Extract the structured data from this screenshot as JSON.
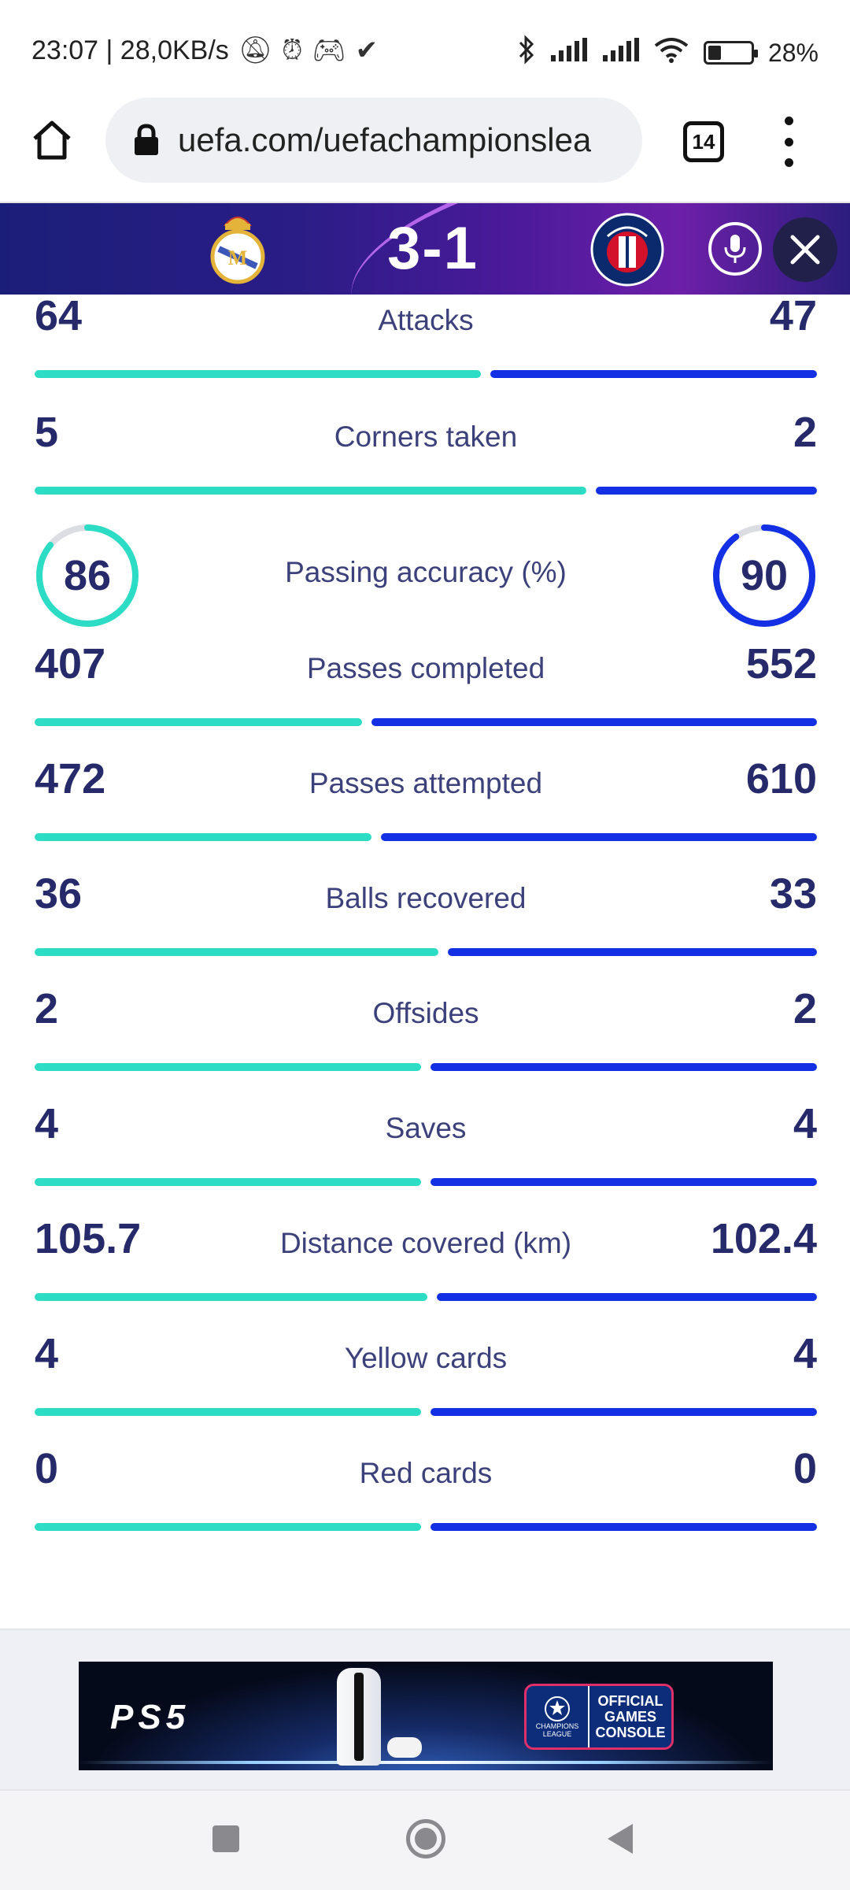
{
  "status_bar": {
    "left_text": "23:07 | 28,0KB/s",
    "battery_text": "28%",
    "battery_level": 0.28,
    "icons": [
      "muted-bell-icon",
      "alarm-icon",
      "game-controller-icon",
      "check-icon",
      "bluetooth-icon",
      "signal-icon",
      "signal-icon",
      "wifi-icon",
      "battery-icon"
    ]
  },
  "browser": {
    "url": "uefa.com/uefachampionslea",
    "tab_count": "14"
  },
  "match": {
    "score": "3-1",
    "home_crest": "real-madrid-crest",
    "away_crest": "psg-crest"
  },
  "stats": [
    {
      "label": "Attacks",
      "home": "64",
      "away": "47",
      "home_share": 0.577
    },
    {
      "label": "Corners taken",
      "home": "5",
      "away": "2",
      "home_share": 0.714
    },
    {
      "label": "Passes completed",
      "home": "407",
      "away": "552",
      "home_share": 0.424
    },
    {
      "label": "Passes attempted",
      "home": "472",
      "away": "610",
      "home_share": 0.436
    },
    {
      "label": "Balls recovered",
      "home": "36",
      "away": "33",
      "home_share": 0.522
    },
    {
      "label": "Offsides",
      "home": "2",
      "away": "2",
      "home_share": 0.5
    },
    {
      "label": "Saves",
      "home": "4",
      "away": "4",
      "home_share": 0.5
    },
    {
      "label": "Distance covered (km)",
      "home": "105.7",
      "away": "102.4",
      "home_share": 0.508
    },
    {
      "label": "Yellow cards",
      "home": "4",
      "away": "4",
      "home_share": 0.5
    },
    {
      "label": "Red cards",
      "home": "0",
      "away": "0",
      "home_share": 0.5
    }
  ],
  "passing_accuracy": {
    "label": "Passing accuracy (%)",
    "home": "86",
    "away": "90",
    "home_pct": 86,
    "away_pct": 90
  },
  "ad": {
    "ps5_logo": "PS5",
    "badge_text": "OFFICIAL GAMES CONSOLE",
    "badge_sub": "CHAMPIONS LEAGUE"
  },
  "colors": {
    "home": "#2ddcc4",
    "away": "#1330e4",
    "text": "#262a6a",
    "banner": "#1b1e79"
  }
}
